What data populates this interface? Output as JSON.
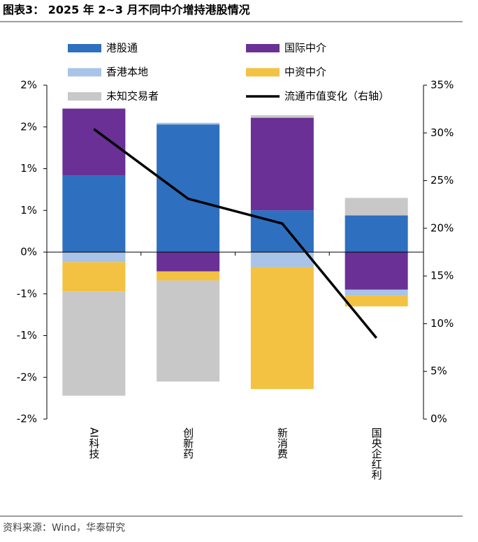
{
  "chart_data": {
    "type": "bar",
    "title": "图表3：  2025 年 2~3 月不同中介增持港股情况",
    "source": "资料来源：Wind，华泰研究",
    "categories": [
      "AI科技",
      "创新药",
      "新消费",
      "国央企红利"
    ],
    "stacked": true,
    "series": [
      {
        "name": "港股通",
        "color": "#2e6fbf",
        "values": [
          0.92,
          1.53,
          0.5,
          0.44
        ]
      },
      {
        "name": "国际中介",
        "color": "#6a3096",
        "values": [
          0.8,
          -0.23,
          1.11,
          -0.45
        ]
      },
      {
        "name": "香港本地",
        "color": "#a9c4e8",
        "values": [
          -0.12,
          0.02,
          -0.18,
          -0.07
        ]
      },
      {
        "name": "中资中介",
        "color": "#f4c242",
        "values": [
          -0.35,
          -0.11,
          -1.46,
          -0.13
        ]
      },
      {
        "name": "未知交易者",
        "color": "#c8c8c8",
        "values": [
          -1.25,
          -1.21,
          0.03,
          0.21
        ]
      },
      {
        "name": "流通市值变化（右轴）",
        "color": "#000000",
        "type": "line",
        "axis": "y2",
        "values": [
          30.4,
          23.1,
          20.5,
          8.5
        ]
      }
    ],
    "ylim": [
      -2,
      2
    ],
    "yticks": [
      {
        "value": 2,
        "label": "2%"
      },
      {
        "value": 1.5,
        "label": "2%"
      },
      {
        "value": 1,
        "label": "1%"
      },
      {
        "value": 0.5,
        "label": "1%"
      },
      {
        "value": 0,
        "label": "0%"
      },
      {
        "value": -0.5,
        "label": "-1%"
      },
      {
        "value": -1,
        "label": "-1%"
      },
      {
        "value": -1.5,
        "label": "-2%"
      },
      {
        "value": -2,
        "label": "-2%"
      }
    ],
    "y2lim": [
      0,
      35
    ],
    "y2ticks": [
      {
        "value": 0,
        "label": "0%"
      },
      {
        "value": 5,
        "label": "5%"
      },
      {
        "value": 10,
        "label": "10%"
      },
      {
        "value": 15,
        "label": "15%"
      },
      {
        "value": 20,
        "label": "20%"
      },
      {
        "value": 25,
        "label": "25%"
      },
      {
        "value": 30,
        "label": "30%"
      },
      {
        "value": 35,
        "label": "35%"
      }
    ],
    "grid": false
  }
}
